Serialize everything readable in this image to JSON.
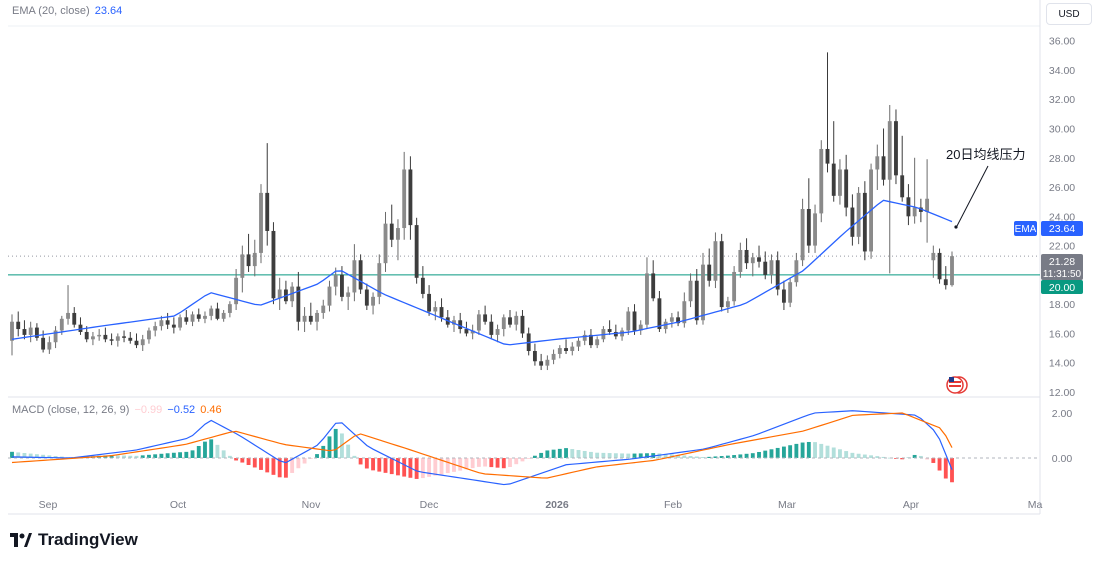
{
  "header": {
    "ema_legend_label": "EMA (20, close)",
    "ema_legend_value": "23.64",
    "currency_button": "USD"
  },
  "macd_legend": {
    "label": "MACD (close, 12, 26, 9)",
    "hist_value": "−0.99",
    "macd_value": "−0.52",
    "signal_value": "0.46"
  },
  "annotation": {
    "text": "20日均线压力"
  },
  "price_axis": {
    "ticks": [
      "36.00",
      "34.00",
      "32.00",
      "30.00",
      "28.00",
      "26.00",
      "24.00",
      "22.00",
      "20.00",
      "18.00",
      "16.00",
      "14.00",
      "12.00"
    ],
    "ema_tag_label": "EMA",
    "ema_tag_value": "23.64",
    "last_price": "21.28",
    "countdown": "11:31:50",
    "level_tag": "20.00"
  },
  "macd_axis": {
    "ticks": [
      "2.00",
      "0.00"
    ]
  },
  "time_axis": {
    "labels": [
      "Sep",
      "Oct",
      "Nov",
      "Dec",
      "2026",
      "Feb",
      "Mar",
      "Apr",
      "Ma"
    ]
  },
  "brand": {
    "logo_text": "TradingView"
  },
  "colors": {
    "up": "#6b6b6b",
    "down": "#3a3a3a",
    "ema": "#2962ff",
    "macd": "#2962ff",
    "signal": "#ff6d00",
    "hist_pos_strong": "#26a69a",
    "hist_pos_weak": "#b2dfdb",
    "hist_neg_strong": "#ff5252",
    "hist_neg_weak": "#ffcdd2",
    "level": "#089981",
    "price_tag": "#787b86"
  },
  "chart_data": {
    "type": "candlestick",
    "price_range": [
      12,
      37
    ],
    "horizontal_level": 20.0,
    "last_price": 21.28,
    "ema_last": 23.64,
    "x_labels": [
      "Sep",
      "Oct",
      "Nov",
      "Dec",
      "2026",
      "Feb",
      "Mar",
      "Apr",
      "Ma"
    ],
    "series": [
      {
        "name": "EMA (20, close)",
        "ema_keypoints": [
          [
            0,
            15.6
          ],
          [
            18,
            16.5
          ],
          [
            33,
            17.2
          ],
          [
            40,
            18.8
          ],
          [
            50,
            17.9
          ],
          [
            62,
            19.4
          ],
          [
            66,
            20.4
          ],
          [
            75,
            18.7
          ],
          [
            90,
            16.6
          ],
          [
            100,
            15.2
          ],
          [
            110,
            15.6
          ],
          [
            125,
            16.1
          ],
          [
            135,
            16.8
          ],
          [
            148,
            18.0
          ],
          [
            160,
            20.3
          ],
          [
            168,
            22.8
          ],
          [
            176,
            25.1
          ],
          [
            183,
            24.6
          ],
          [
            190,
            23.64
          ]
        ]
      },
      {
        "name": "MACD",
        "macd_keypoints": [
          [
            0,
            0.05
          ],
          [
            12,
            0.0
          ],
          [
            25,
            0.35
          ],
          [
            36,
            0.9
          ],
          [
            40,
            1.7
          ],
          [
            46,
            1.0
          ],
          [
            55,
            -0.25
          ],
          [
            62,
            0.6
          ],
          [
            66,
            1.7
          ],
          [
            72,
            0.5
          ],
          [
            82,
            -0.6
          ],
          [
            100,
            -1.2
          ],
          [
            112,
            -0.3
          ],
          [
            125,
            -0.05
          ],
          [
            140,
            0.4
          ],
          [
            150,
            1.0
          ],
          [
            162,
            2.0
          ],
          [
            170,
            2.1
          ],
          [
            183,
            1.9
          ],
          [
            187,
            1.1
          ],
          [
            190,
            -0.52
          ]
        ]
      },
      {
        "name": "Signal",
        "signal_keypoints": [
          [
            0,
            -0.2
          ],
          [
            20,
            0.1
          ],
          [
            35,
            0.6
          ],
          [
            45,
            1.2
          ],
          [
            55,
            0.6
          ],
          [
            65,
            0.3
          ],
          [
            70,
            1.1
          ],
          [
            80,
            0.4
          ],
          [
            95,
            -0.7
          ],
          [
            108,
            -0.9
          ],
          [
            118,
            -0.4
          ],
          [
            130,
            -0.1
          ],
          [
            145,
            0.6
          ],
          [
            160,
            1.2
          ],
          [
            170,
            1.9
          ],
          [
            180,
            2.0
          ],
          [
            188,
            1.3
          ],
          [
            190,
            0.46
          ]
        ]
      }
    ],
    "candles_compact": "15.5,17.3,14.5,16.8;16.8,17.5,15.8,16.3;16.3,16.9,15.6,15.9;15.9,16.8,15.4,16.4;16.4,16.7,15.5,15.7;15.7,16.2,14.7,14.9;14.9,15.8,14.6,15.4;15.4,16.5,15.0,16.2;16.2,17.2,15.9,17.0;17.0,19.3,16.6,17.4;17.4,17.8,16.4,16.6;16.6,17.1,15.9,16.1;16.1,16.5,15.4,15.6;15.6,16.1,15.2,15.8;15.8,16.3,15.5,15.9;15.9,16.4,15.4,15.6;15.6,16.0,15.2,15.5;15.5,16.0,15.1,15.8;15.8,16.2,15.4,15.7;15.7,16.1,15.3,15.5;15.5,16.0,15.0,15.2;15.2,15.9,14.8,15.6;15.6,16.4,15.3,16.2;16.2,16.8,15.8,16.5;16.5,17.2,16.2,16.9;16.9,17.4,16.3,16.6;16.6,17.1,16.0,16.4;16.4,17.3,16.2,17.1;17.1,17.6,16.6,16.8;16.8,17.5,16.5,17.3;17.3,17.7,16.8,17.0;17.0,17.5,16.7,17.2;17.2,17.9,16.9,17.7;17.7,18.1,16.9,17.0;17.0,17.6,16.8,17.4;17.4,18.2,17.1,18.0;18.0,20.4,17.6,19.8;19.8,22.0,18.8,21.4;21.4,22.8,20.2,20.6;20.6,22.4,19.9,21.5;21.5,26.2,20.8,25.6;25.6,29.0,22.0,23.0;23.0,23.6,18.0,18.4;18.4,19.8,17.6,19.0;19.0,19.6,18.0,18.2;18.2,19.5,17.8,19.2;19.2,20.2,16.2,16.8;16.8,17.8,16.1,17.2;17.2,18.1,16.6,16.8;16.8,17.6,16.2,17.4;17.4,18.3,17.0,17.9;17.9,19.6,17.5,19.2;19.2,20.5,18.6,20.0;20.0,20.6,18.2,18.5;18.5,19.2,17.6,18.8;18.8,22.1,18.2,21.0;21.0,21.4,18.7,19.0;19.0,19.4,17.6,17.9;17.9,18.8,17.3,18.5;18.5,21.4,18.0,20.8;20.8,24.3,20.2,23.5;23.5,24.8,21.9,22.4;22.4,23.8,21.0,23.2;23.2,28.4,22.4,27.2;27.2,28.1,22.4,23.4;23.4,23.9,19.4,19.8;19.8,20.6,18.4,18.7;18.7,19.3,17.2,17.5;17.5,18.2,16.9,17.8;17.8,18.4,16.8,17.1;17.1,17.6,16.4,16.6;16.6,17.2,16.1,16.9;16.9,17.4,16.0,16.3;16.3,16.8,15.8,16.0;16.0,16.6,15.6,16.2;16.2,17.6,15.9,17.3;17.3,17.9,16.6,16.8;16.8,17.3,15.6,15.9;15.9,16.6,15.4,16.3;16.3,17.3,15.8,17.1;17.1,17.6,16.4,16.6;16.6,17.5,16.2,17.2;17.2,17.6,15.7,16.0;16.0,16.4,14.5,14.8;14.8,15.3,13.8,14.1;14.1,14.6,13.5,13.8;13.8,14.5,13.5,14.2;14.2,14.9,13.9,14.6;14.6,15.2,14.3,15.0;15.0,15.6,14.6,14.8;14.8,15.4,14.5,15.1;15.1,15.7,14.8,15.5;15.5,16.2,15.2,15.9;15.9,16.3,15.0,15.2;15.2,15.8,15.0,15.6;15.6,16.5,15.4,16.3;16.3,16.9,15.9,16.1;16.1,16.6,15.6,15.8;15.8,16.4,15.5,16.2;16.2,17.8,15.9,17.5;17.5,18.0,15.9,16.2;16.2,16.9,15.9,16.6;16.6,21.2,16.3,20.1;20.1,21.0,18.2,18.4;18.4,18.9,16.1,16.3;16.3,17.0,16.0,16.8;16.8,17.4,16.4,17.1;17.1,17.5,16.5,16.7;16.7,18.8,16.4,18.2;18.2,20.1,17.8,19.6;19.6,20.4,16.6,16.9;16.9,21.5,16.6,20.7;20.7,21.8,19.2,19.6;19.6,22.9,19.1,22.3;22.3,22.8,17.5,17.8;17.8,18.5,17.4,18.2;18.2,20.6,17.9,20.2;20.2,22.2,19.8,21.7;21.7,22.5,20.4,20.8;20.8,21.5,19.9,21.2;21.2,22.0,20.5,20.9;20.9,21.6,19.7,20.0;20.0,21.4,19.4,21.0;21.0,21.6,18.6,19.0;19.0,19.6,17.6,18.1;18.1,19.8,17.8,19.5;19.5,21.5,19.2,21.0;21.0,25.2,20.6,24.5;24.5,26.6,21.5,22.0;22.0,24.8,21.5,24.2;24.2,29.2,23.6,28.6;28.6,35.2,27.0,27.6;27.6,30.5,25.0,25.4;25.4,27.9,24.8,27.2;27.2,28.2,24.0,24.6;24.6,25.5,22.0,22.6;22.6,26.0,22.1,25.6;25.6,26.4,21.0,21.6;21.6,27.6,21.1,27.2;27.2,28.9,25.8,28.1;28.1,30.0,26.1,26.5;26.5,31.6,20.1,30.5;30.5,31.3,26.2,26.8;26.8,29.5,25.0,25.3;25.3,26.2,23.4,24.0;24.0,28.0,23.5,24.6;24.6,25.2,23.6,24.3;24.3,27.9,22.2,25.2;21.0,22.0,19.8,21.5;21.5,21.8,19.4,19.7;19.7,20.6,19.0,19.3;19.3,21.6,19.2,21.28"
  }
}
